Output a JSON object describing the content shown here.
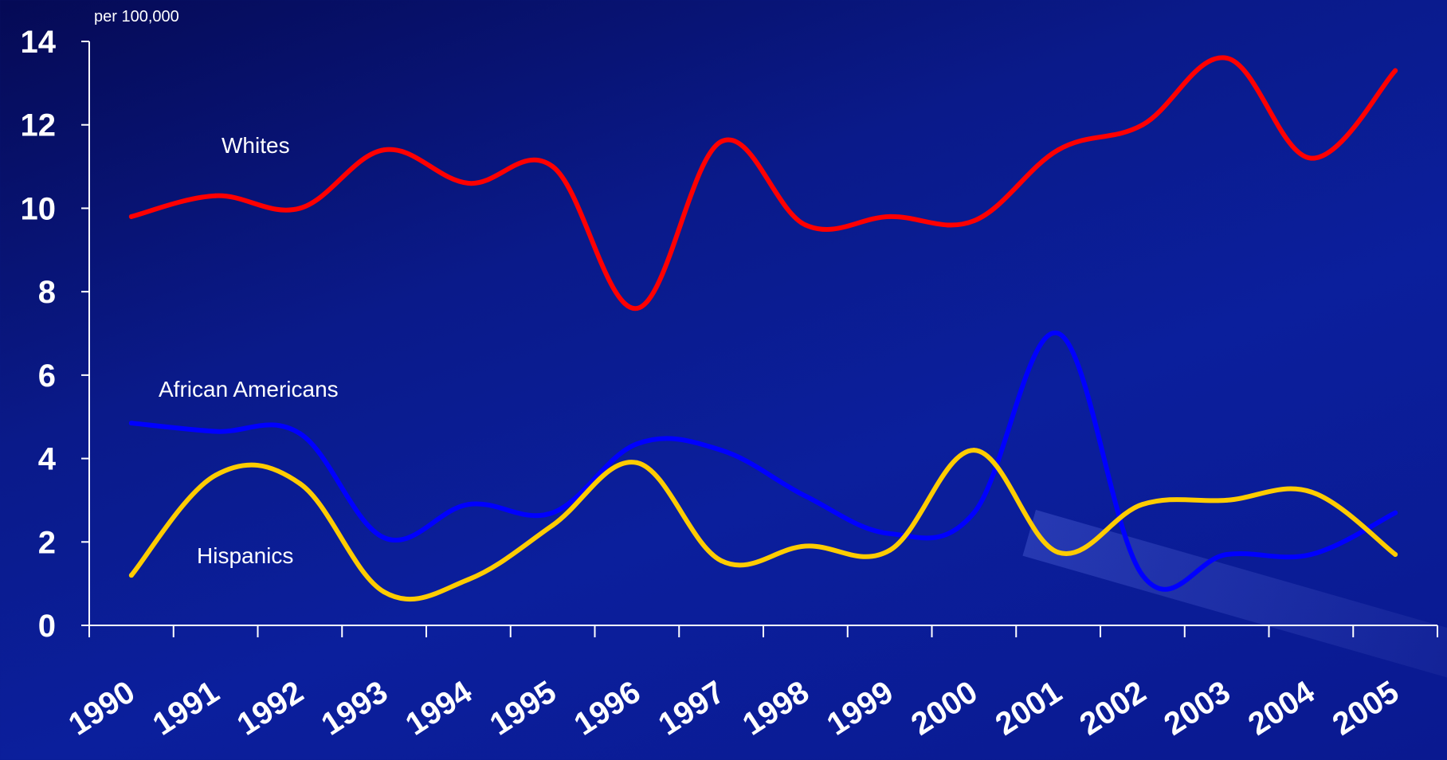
{
  "chart_data": {
    "type": "line",
    "unit_label": "per 100,000",
    "x": [
      1990,
      1991,
      1992,
      1993,
      1994,
      1995,
      1996,
      1997,
      1998,
      1999,
      2000,
      2001,
      2002,
      2003,
      2004,
      2005
    ],
    "x_tick_labels": [
      "1990",
      "1991",
      "1992",
      "1993",
      "1994",
      "1995",
      "1996",
      "1997",
      "1998",
      "1999",
      "2000",
      "2001",
      "2002",
      "2003",
      "2004",
      "2005"
    ],
    "ylim": [
      0,
      14
    ],
    "y_ticks": [
      0,
      2,
      4,
      6,
      8,
      10,
      12,
      14
    ],
    "y_tick_labels": [
      "0",
      "2",
      "4",
      "6",
      "8",
      "10",
      "12",
      "14"
    ],
    "grid": false,
    "series": [
      {
        "name": "Whites",
        "color": "#ff0000",
        "values": [
          9.8,
          10.3,
          10.0,
          11.4,
          10.6,
          11.0,
          7.6,
          11.6,
          9.6,
          9.8,
          9.7,
          11.4,
          12.0,
          13.6,
          11.2,
          13.3
        ]
      },
      {
        "name": "African Americans",
        "color": "#0000ff",
        "values": [
          4.85,
          4.65,
          4.6,
          2.1,
          2.9,
          2.7,
          4.35,
          4.2,
          3.1,
          2.2,
          2.7,
          7.0,
          1.2,
          1.7,
          1.7,
          2.7
        ]
      },
      {
        "name": "Hispanics",
        "color": "#ffcc00",
        "values": [
          1.2,
          3.6,
          3.4,
          0.8,
          1.1,
          2.4,
          3.9,
          1.55,
          1.9,
          1.8,
          4.2,
          1.75,
          2.9,
          3.0,
          3.2,
          1.7
        ]
      }
    ]
  }
}
